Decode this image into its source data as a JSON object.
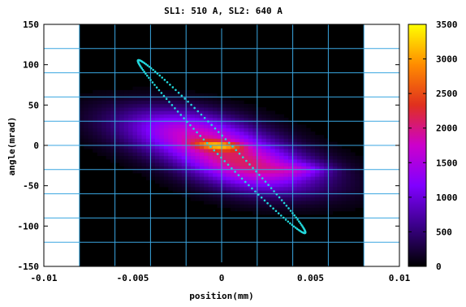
{
  "chart_data": {
    "type": "heatmap",
    "title": "SL1: 510 A, SL2: 640 A",
    "xlabel": "position(mm)",
    "ylabel": "angle(mrad)",
    "xlim": [
      -0.01,
      0.01
    ],
    "ylim": [
      -150,
      150
    ],
    "x_ticks": [
      -0.01,
      -0.005,
      0,
      0.005,
      0.01
    ],
    "x_tick_labels": [
      "-0.01",
      "-0.005",
      "0",
      "0.005",
      "0.01"
    ],
    "y_ticks": [
      -150,
      -100,
      -50,
      0,
      50,
      100,
      150
    ],
    "y_tick_labels": [
      "-150",
      "-100",
      "-50",
      "0",
      "50",
      "100",
      "150"
    ],
    "data_x_range": [
      -0.008,
      0.008
    ],
    "colorbar": {
      "range": [
        0,
        3500
      ],
      "ticks": [
        0,
        500,
        1000,
        1500,
        2000,
        2500,
        3000,
        3500
      ],
      "tick_labels": [
        "0",
        "500",
        "1000",
        "1500",
        "2000",
        "2500",
        "3000",
        "3500"
      ],
      "colors": [
        "#000000",
        "#3a0088",
        "#8000ff",
        "#cc00cc",
        "#e0301e",
        "#ff8c00",
        "#ffff00"
      ]
    },
    "blobs": [
      {
        "cx": 0.0,
        "cy": -8,
        "sx": 0.0038,
        "sy": 28,
        "rho": -0.65,
        "amp": 1250
      },
      {
        "cx": -0.0016,
        "cy": 22,
        "sx": 0.0026,
        "sy": 20,
        "rho": -0.35,
        "amp": 900
      },
      {
        "cx": 0.0015,
        "cy": -32,
        "sx": 0.0024,
        "sy": 22,
        "rho": -0.3,
        "amp": 1000
      },
      {
        "cx": -0.0002,
        "cy": 0,
        "sx": 0.0009,
        "sy": 4,
        "rho": -0.3,
        "amp": 1300
      },
      {
        "cx": 0.0045,
        "cy": -30,
        "sx": 0.0012,
        "sy": 6,
        "rho": 0.0,
        "amp": 500
      }
    ],
    "ellipse": {
      "color": "#22d8dc",
      "vertices": [
        [
          -0.0047,
          107
        ],
        [
          0.0047,
          -110
        ]
      ],
      "cx": 0.0,
      "cy": -1.5,
      "semi_major_end": [
        0.0047,
        -108.5
      ],
      "semi_minor": 0.00045,
      "points": 150
    }
  }
}
